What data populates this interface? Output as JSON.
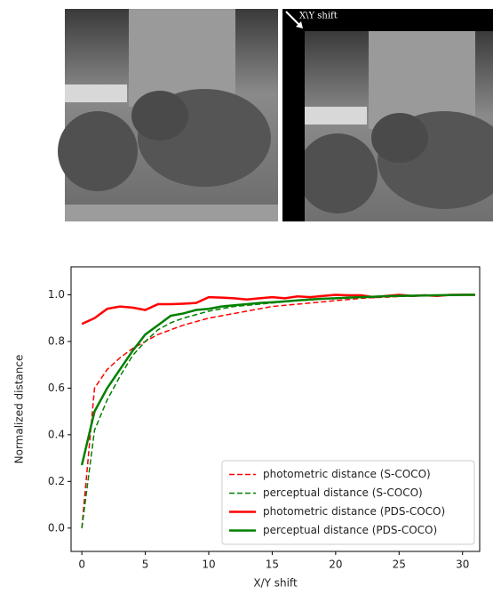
{
  "figure": {
    "annotation": "X\\Y shift"
  },
  "chart_data": {
    "type": "line",
    "xlabel": "X/Y shift",
    "ylabel": "Normalized distance",
    "x": [
      0,
      1,
      2,
      3,
      4,
      5,
      6,
      7,
      8,
      9,
      10,
      11,
      12,
      13,
      14,
      15,
      16,
      17,
      18,
      19,
      20,
      21,
      22,
      23,
      24,
      25,
      26,
      27,
      28,
      29,
      30,
      31
    ],
    "series": [
      {
        "name": "photometric distance (S-COCO)",
        "color": "#ff0000",
        "linestyle": "dashed",
        "values": [
          0.0,
          0.6,
          0.68,
          0.73,
          0.77,
          0.8,
          0.83,
          0.85,
          0.87,
          0.885,
          0.9,
          0.91,
          0.92,
          0.93,
          0.94,
          0.95,
          0.955,
          0.96,
          0.965,
          0.97,
          0.975,
          0.98,
          0.985,
          0.988,
          0.99,
          0.993,
          0.995,
          0.997,
          0.998,
          0.999,
          1.0,
          1.0
        ]
      },
      {
        "name": "perceptual distance (S-COCO)",
        "color": "#008000",
        "linestyle": "dashed",
        "values": [
          0.0,
          0.42,
          0.55,
          0.65,
          0.74,
          0.8,
          0.85,
          0.88,
          0.9,
          0.915,
          0.93,
          0.94,
          0.95,
          0.955,
          0.96,
          0.965,
          0.97,
          0.975,
          0.978,
          0.982,
          0.985,
          0.988,
          0.99,
          0.992,
          0.994,
          0.995,
          0.996,
          0.997,
          0.998,
          0.999,
          1.0,
          1.0
        ]
      },
      {
        "name": "photometric distance (PDS-COCO)",
        "color": "#ff0000",
        "linestyle": "solid",
        "values": [
          0.875,
          0.9,
          0.94,
          0.95,
          0.945,
          0.935,
          0.96,
          0.96,
          0.962,
          0.965,
          0.99,
          0.988,
          0.985,
          0.98,
          0.985,
          0.99,
          0.985,
          0.993,
          0.99,
          0.995,
          1.0,
          0.998,
          0.998,
          0.99,
          0.995,
          1.0,
          0.995,
          0.998,
          0.995,
          1.0,
          1.0,
          1.0
        ]
      },
      {
        "name": "perceptual distance (PDS-COCO)",
        "color": "#008000",
        "linestyle": "solid",
        "values": [
          0.27,
          0.5,
          0.6,
          0.68,
          0.76,
          0.83,
          0.87,
          0.91,
          0.92,
          0.935,
          0.94,
          0.95,
          0.955,
          0.96,
          0.965,
          0.968,
          0.972,
          0.976,
          0.98,
          0.983,
          0.985,
          0.988,
          0.99,
          0.992,
          0.994,
          0.995,
          0.996,
          0.997,
          0.998,
          0.999,
          1.0,
          1.0
        ]
      }
    ],
    "xlim": [
      -0.85,
      31.35
    ],
    "xticks": [
      0,
      5,
      10,
      15,
      20,
      25,
      30
    ],
    "ylim": [
      -0.1,
      1.12
    ],
    "yticks": [
      {
        "value": 0,
        "label": "0.0"
      },
      0.2,
      0.4,
      0.6,
      0.8,
      {
        "value": 1,
        "label": "1.0"
      }
    ],
    "grid": false,
    "legend": "lower right"
  }
}
